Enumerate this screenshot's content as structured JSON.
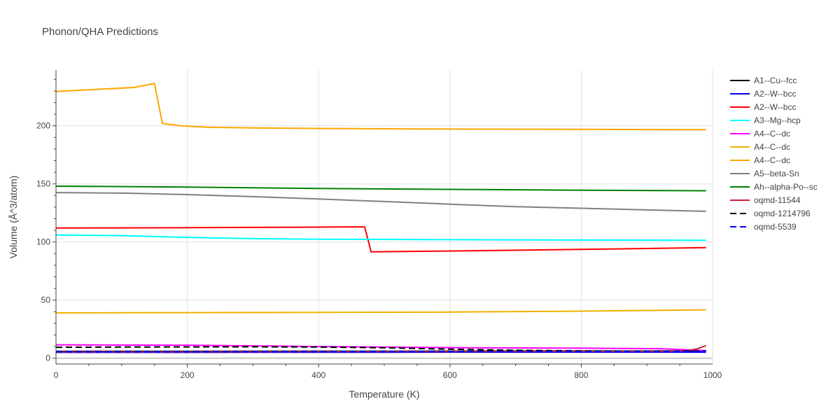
{
  "chart_data": {
    "type": "line",
    "title": "Phonon/QHA Predictions",
    "xlabel": "Temperature (K)",
    "ylabel": "Volume (Å^3/atom)",
    "xlim": [
      0,
      1000
    ],
    "ylim": [
      -5,
      248
    ],
    "xticks": [
      0,
      200,
      400,
      600,
      800,
      1000
    ],
    "yticks": [
      0,
      50,
      100,
      150,
      200
    ],
    "grid": true,
    "legend_position": "right",
    "series": [
      {
        "name": "A1--Cu--fcc",
        "color": "#000000",
        "dash": "solid",
        "x": [
          0,
          500,
          990
        ],
        "y": [
          5.9,
          6.0,
          6.2
        ]
      },
      {
        "name": "A2--W--bcc",
        "color": "#0000ff",
        "dash": "solid",
        "x": [
          0,
          500,
          990
        ],
        "y": [
          5.0,
          5.1,
          5.2
        ]
      },
      {
        "name": "A2--W--bcc",
        "color": "#ff0000",
        "dash": "solid",
        "x": [
          0,
          200,
          370,
          470,
          480,
          600,
          800,
          990
        ],
        "y": [
          112.0,
          112.3,
          112.7,
          113.0,
          91.5,
          92.2,
          93.6,
          95.1
        ]
      },
      {
        "name": "A3--Mg--hcp",
        "color": "#00ffff",
        "dash": "solid",
        "x": [
          0,
          100,
          200,
          300,
          400,
          600,
          800,
          990
        ],
        "y": [
          106.0,
          105.5,
          104.0,
          102.9,
          102.4,
          102.0,
          101.7,
          101.5
        ]
      },
      {
        "name": "A4--C--dc",
        "color": "#ff00ff",
        "dash": "solid",
        "x": [
          0,
          200,
          400,
          600,
          800,
          920,
          990
        ],
        "y": [
          11.5,
          11.2,
          10.0,
          9.1,
          8.6,
          8.2,
          6.5
        ]
      },
      {
        "name": "A4--C--dc",
        "color": "#f0b000",
        "dash": "solid",
        "x": [
          0,
          200,
          400,
          600,
          800,
          990
        ],
        "y": [
          39.0,
          39.2,
          39.4,
          39.7,
          40.5,
          41.6
        ]
      },
      {
        "name": "A4--C--dc",
        "color": "#ffa500",
        "dash": "solid",
        "x": [
          0,
          120,
          150,
          162,
          190,
          230,
          300,
          400,
          550,
          800,
          990
        ],
        "y": [
          229.5,
          233.0,
          236.5,
          202.0,
          200.0,
          198.8,
          198.2,
          197.7,
          197.2,
          196.9,
          196.6
        ]
      },
      {
        "name": "A5--beta-Sn",
        "color": "#808080",
        "dash": "solid",
        "x": [
          0,
          110,
          200,
          300,
          400,
          500,
          600,
          700,
          800,
          900,
          990
        ],
        "y": [
          142.5,
          142.0,
          140.8,
          139.0,
          137.0,
          134.8,
          132.5,
          130.4,
          129.0,
          127.6,
          126.4
        ]
      },
      {
        "name": "Ah--alpha-Po--sc",
        "color": "#008000",
        "dash": "solid",
        "x": [
          0,
          200,
          400,
          600,
          800,
          990
        ],
        "y": [
          148.0,
          147.3,
          146.0,
          145.3,
          144.6,
          144.1
        ]
      },
      {
        "name": "oqmd-11544",
        "color": "#c81e3c",
        "dash": "solid",
        "x": [
          0,
          500,
          940,
          960,
          975,
          990
        ],
        "y": [
          5.4,
          5.6,
          5.8,
          6.5,
          7.8,
          10.8
        ]
      },
      {
        "name": "oqmd-1214796",
        "color": "#000000",
        "dash": "dash",
        "x": [
          0,
          100,
          200,
          300,
          400,
          500,
          600,
          700,
          800,
          900,
          950,
          990
        ],
        "y": [
          9.4,
          9.6,
          9.7,
          9.8,
          9.6,
          9.0,
          7.8,
          6.8,
          6.3,
          6.1,
          6.2,
          6.3
        ]
      },
      {
        "name": "oqmd-5539",
        "color": "#0000ff",
        "dash": "dash",
        "x": [
          0,
          500,
          990
        ],
        "y": [
          5.6,
          5.7,
          5.9
        ]
      }
    ]
  }
}
